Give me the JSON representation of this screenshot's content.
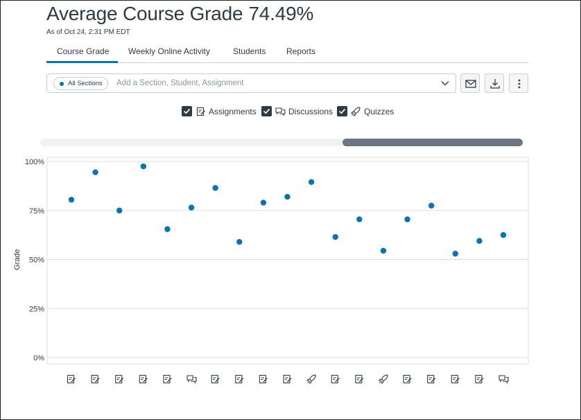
{
  "header": {
    "title": "Average Course Grade",
    "grade": "74.49%",
    "as_of": "As of Oct 24, 2:31 PM EDT"
  },
  "tabs": [
    {
      "label": "Course Grade",
      "active": true
    },
    {
      "label": "Weekly Online Activity",
      "active": false
    },
    {
      "label": "Students",
      "active": false
    },
    {
      "label": "Reports",
      "active": false
    }
  ],
  "filter": {
    "pill_label": "All Sections",
    "placeholder": "Add a Section, Student, Assignment"
  },
  "actions": {
    "message_icon": "envelope-icon",
    "download_icon": "download-icon",
    "more_icon": "kebab-menu-icon"
  },
  "legend": [
    {
      "label": "Assignments",
      "checked": true,
      "icon": "assignment-icon"
    },
    {
      "label": "Discussions",
      "checked": true,
      "icon": "discussion-icon"
    },
    {
      "label": "Quizzes",
      "checked": true,
      "icon": "quiz-icon"
    }
  ],
  "colors": {
    "accent": "#0374b5",
    "text": "#2d3b45",
    "scroll_thumb": "#6b7780"
  },
  "chart_data": {
    "type": "scatter",
    "ylabel": "Grade",
    "ylim": [
      0,
      100
    ],
    "yticks": [
      "0%",
      "25%",
      "50%",
      "75%",
      "100%"
    ],
    "grid": true,
    "x_item_types": [
      "assignment",
      "assignment",
      "assignment",
      "assignment",
      "assignment",
      "discussion",
      "assignment",
      "assignment",
      "assignment",
      "assignment",
      "quiz",
      "assignment",
      "assignment",
      "quiz",
      "assignment",
      "assignment",
      "assignment",
      "assignment",
      "discussion"
    ],
    "values": [
      80.5,
      94.5,
      75,
      97.5,
      65.5,
      76.5,
      86.5,
      59,
      79,
      82,
      89.5,
      61.5,
      70.5,
      54.5,
      70.5,
      77.5,
      53,
      59.5,
      62.5
    ],
    "point_color": "#0374b5"
  }
}
